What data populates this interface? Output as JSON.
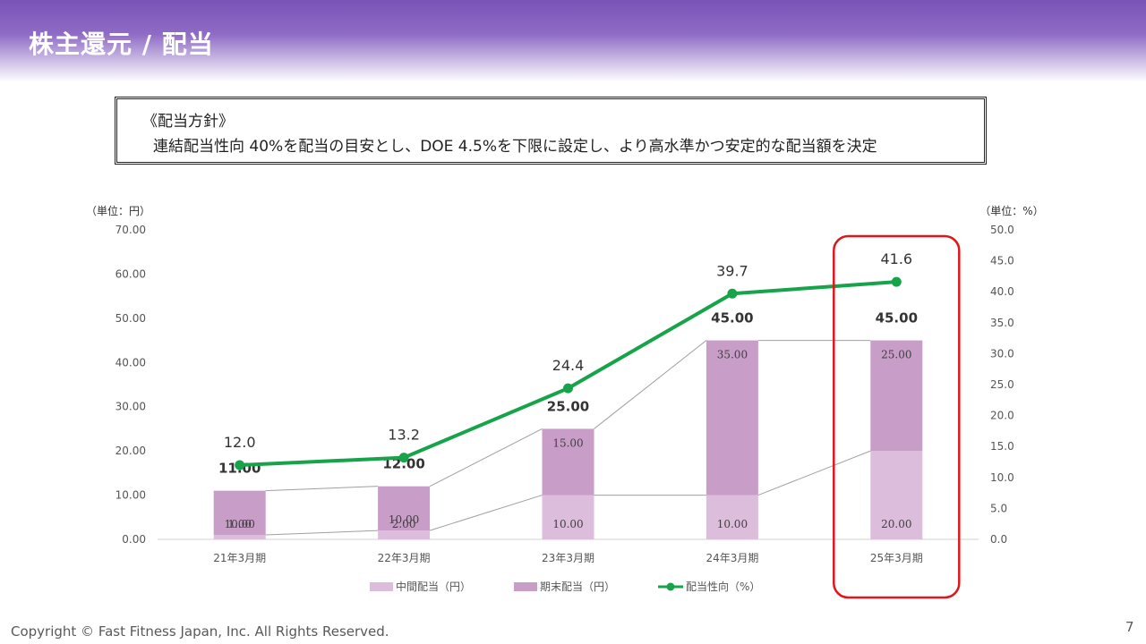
{
  "slide": {
    "title": "株主還元 / 配当",
    "policy_heading": "《配当方針》",
    "policy_text": "連結配当性向 40%を配当の目安とし、DOE 4.5%を下限に設定し、より高水準かつ安定的な配当額を決定",
    "copyright": "Copyright © Fast Fitness Japan, Inc. All Rights Reserved.",
    "page_number": "7"
  },
  "chart_data": {
    "type": "bar",
    "stacked": true,
    "categories": [
      "21年3月期",
      "22年3月期",
      "23年3月期",
      "24年3月期",
      "25年3月期"
    ],
    "y_left_unit": "（単位：円）",
    "y_right_unit": "（単位：%）",
    "ylim_left": [
      0,
      70
    ],
    "ylim_right": [
      0,
      50
    ],
    "left_ticks": [
      "0.00",
      "10.00",
      "20.00",
      "30.00",
      "40.00",
      "50.00",
      "60.00",
      "70.00"
    ],
    "right_ticks": [
      "0.0",
      "5.0",
      "10.0",
      "15.0",
      "20.0",
      "25.0",
      "30.0",
      "35.0",
      "40.0",
      "45.0",
      "50.0"
    ],
    "series": [
      {
        "name": "中間配当（円）",
        "kind": "bar",
        "color": "#dcbddc",
        "axis": "left",
        "values": [
          1.0,
          2.0,
          10.0,
          10.0,
          20.0
        ],
        "labels": [
          "1.00",
          "2.00",
          "10.00",
          "10.00",
          "20.00"
        ]
      },
      {
        "name": "期末配当（円）",
        "kind": "bar",
        "color": "#c89dc8",
        "axis": "left",
        "values": [
          10.0,
          10.0,
          15.0,
          35.0,
          25.0
        ],
        "labels": [
          "10.00",
          "10.00",
          "15.00",
          "35.00",
          "25.00"
        ]
      },
      {
        "name": "配当性向（%）",
        "kind": "line",
        "color": "#16a34a",
        "axis": "right",
        "values": [
          12.0,
          13.2,
          24.4,
          39.7,
          41.6
        ],
        "labels": [
          "12.0",
          "13.2",
          "24.4",
          "39.7",
          "41.6"
        ]
      }
    ],
    "totals": [
      11.0,
      12.0,
      25.0,
      45.0,
      45.0
    ],
    "total_labels": [
      "11.00",
      "12.00",
      "25.00",
      "45.00",
      "45.00"
    ],
    "highlight_category": "25年3月期",
    "highlight_color": "#e0161b",
    "grid": false,
    "legend_position": "bottom"
  }
}
